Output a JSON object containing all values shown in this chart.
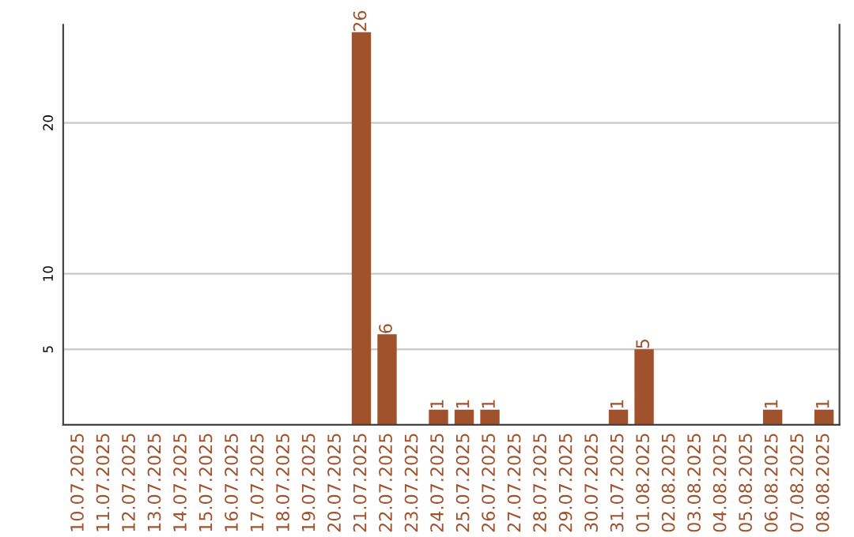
{
  "chart_data": {
    "type": "bar",
    "categories": [
      "10.07.2025",
      "11.07.2025",
      "12.07.2025",
      "13.07.2025",
      "14.07.2025",
      "15.07.2025",
      "16.07.2025",
      "17.07.2025",
      "18.07.2025",
      "19.07.2025",
      "20.07.2025",
      "21.07.2025",
      "22.07.2025",
      "23.07.2025",
      "24.07.2025",
      "25.07.2025",
      "26.07.2025",
      "27.07.2025",
      "28.07.2025",
      "29.07.2025",
      "30.07.2025",
      "31.07.2025",
      "01.08.2025",
      "02.08.2025",
      "03.08.2025",
      "04.08.2025",
      "05.08.2025",
      "06.08.2025",
      "07.08.2025",
      "08.08.2025"
    ],
    "values": [
      0,
      0,
      0,
      0,
      0,
      0,
      0,
      0,
      0,
      0,
      0,
      26,
      6,
      0,
      1,
      1,
      1,
      0,
      0,
      0,
      0,
      1,
      5,
      0,
      0,
      0,
      0,
      1,
      0,
      1
    ],
    "value_labels": [
      null,
      null,
      null,
      null,
      null,
      null,
      null,
      null,
      null,
      null,
      null,
      "26",
      "6",
      null,
      "1",
      "1",
      "1",
      null,
      null,
      null,
      null,
      "1",
      "5",
      null,
      null,
      null,
      null,
      "1",
      null,
      "1"
    ],
    "color": "#a0522d",
    "ylim": [
      0,
      26.5
    ],
    "yticks": [
      5,
      10,
      20
    ],
    "grid": "y",
    "legend": false
  }
}
